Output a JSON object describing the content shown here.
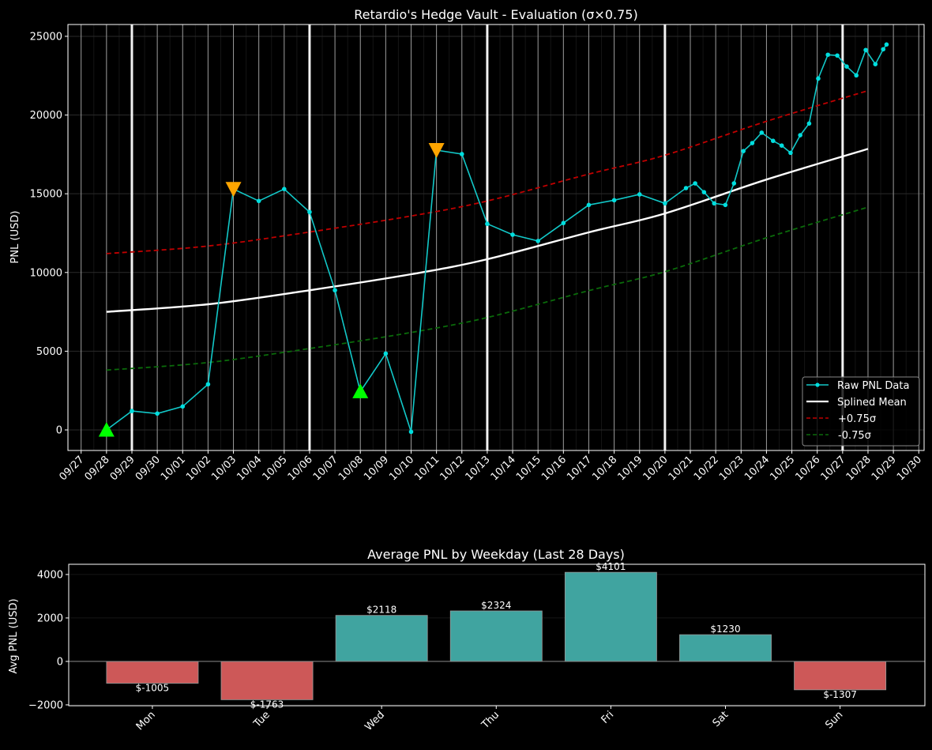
{
  "colors": {
    "background": "#000000",
    "raw": "#12c8c8",
    "raw_point": "#00dede",
    "mean": "#ffffff",
    "upper": "#c00000",
    "lower": "#0a6a0a",
    "buy_marker": "#00ff00",
    "sell_marker": "#ffa500",
    "bar_pos": "#40a4a0",
    "bar_neg": "#cd5858"
  },
  "chart_data": [
    {
      "type": "line",
      "title": "Retardio's Hedge Vault - Evaluation (σ×0.75)",
      "xlabel": "",
      "ylabel": "PNL (USD)",
      "x_unit": "days since 09/27",
      "xlim": [
        -0.52,
        33.21
      ],
      "ylim": [
        -1305,
        25750
      ],
      "x_ticks": [
        0,
        1,
        2,
        3,
        4,
        5,
        6,
        7,
        8,
        9,
        10,
        11,
        12,
        13,
        14,
        15,
        16,
        17,
        18,
        19,
        20,
        21,
        22,
        23,
        24,
        25,
        26,
        27,
        28,
        29,
        30,
        31,
        32,
        33
      ],
      "x_tick_labels": [
        "09/27",
        "09/28",
        "09/29",
        "09/30",
        "10/01",
        "10/02",
        "10/03",
        "10/04",
        "10/05",
        "10/06",
        "10/07",
        "10/08",
        "10/09",
        "10/10",
        "10/11",
        "10/12",
        "10/13",
        "10/14",
        "10/15",
        "10/16",
        "10/17",
        "10/18",
        "10/19",
        "10/20",
        "10/21",
        "10/22",
        "10/23",
        "10/24",
        "10/25",
        "10/26",
        "10/27",
        "10/28",
        "10/29",
        "10/30"
      ],
      "y_ticks": [
        0,
        5000,
        10000,
        15000,
        20000,
        25000
      ],
      "y_tick_labels": [
        "0",
        "5000",
        "10000",
        "15000",
        "20000",
        "25000"
      ],
      "week_lines": [
        2,
        9,
        16,
        23,
        30
      ],
      "grid": true,
      "legend_position": "bottom-right",
      "series": [
        {
          "name": "Raw PNL Data",
          "style": "line-markers",
          "x": [
            1,
            2,
            3,
            4,
            5,
            6,
            7,
            8,
            9,
            10,
            11,
            12,
            13,
            14,
            15,
            16,
            17,
            18,
            19,
            20,
            21,
            22,
            23,
            23.83,
            24.19,
            24.54,
            24.94,
            25.38,
            25.72,
            26.09,
            26.44,
            26.81,
            27.26,
            27.6,
            27.95,
            28.33,
            28.68,
            29.04,
            29.42,
            29.79,
            30.16,
            30.54,
            30.91,
            31.29,
            31.6,
            31.73
          ],
          "y": [
            0,
            1200,
            1040,
            1490,
            2900,
            15300,
            14540,
            15300,
            13840,
            8870,
            2440,
            4850,
            -120,
            17770,
            17520,
            13090,
            12400,
            12000,
            13140,
            14290,
            14590,
            14960,
            14390,
            15360,
            15660,
            15100,
            14390,
            14290,
            15660,
            17710,
            18220,
            18880,
            18360,
            18060,
            17600,
            18720,
            19460,
            22320,
            23830,
            23780,
            23080,
            22520,
            24130,
            23230,
            24180,
            24480
          ]
        },
        {
          "name": "Splined Mean",
          "style": "solid",
          "x": [
            1,
            5,
            9,
            13,
            16,
            20,
            23,
            27,
            31
          ],
          "y": [
            7500,
            7980,
            8870,
            9890,
            10840,
            12550,
            13750,
            15900,
            17850
          ]
        },
        {
          "name": "+0.75σ",
          "style": "dashed",
          "x": [
            1,
            5,
            9,
            13,
            16,
            20,
            23,
            27,
            31
          ],
          "y": [
            11200,
            11680,
            12570,
            13590,
            14540,
            16250,
            17450,
            19600,
            21550
          ]
        },
        {
          "name": "-0.75σ",
          "style": "dashed",
          "x": [
            1,
            5,
            9,
            13,
            16,
            20,
            23,
            27,
            31
          ],
          "y": [
            3800,
            4280,
            5170,
            6190,
            7140,
            8850,
            10050,
            12200,
            14150
          ]
        }
      ],
      "markers": [
        {
          "kind": "buy",
          "shape": "triangle-up",
          "x": 1,
          "y": 0
        },
        {
          "kind": "buy",
          "shape": "triangle-up",
          "x": 11,
          "y": 2440
        },
        {
          "kind": "sell",
          "shape": "triangle-down",
          "x": 6,
          "y": 15300
        },
        {
          "kind": "sell",
          "shape": "triangle-down",
          "x": 14,
          "y": 17770
        }
      ]
    },
    {
      "type": "bar",
      "title": "Average PNL by Weekday (Last 28 Days)",
      "xlabel": "",
      "ylabel": "Avg PNL (USD)",
      "categories": [
        "Mon",
        "Tue",
        "Wed",
        "Thu",
        "Fri",
        "Sat",
        "Sun"
      ],
      "values": [
        -1005,
        -1763,
        2118,
        2324,
        4101,
        1230,
        -1307
      ],
      "data_labels": [
        "$-1005",
        "$-1763",
        "$2118",
        "$2324",
        "$4101",
        "$1230",
        "$-1307"
      ],
      "ylim": [
        -2040,
        4470
      ],
      "xlim": [
        -0.73,
        6.74
      ],
      "y_ticks": [
        -2000,
        0,
        2000,
        4000
      ],
      "y_tick_labels": [
        "−2000",
        "0",
        "2000",
        "4000"
      ],
      "grid": true
    }
  ]
}
